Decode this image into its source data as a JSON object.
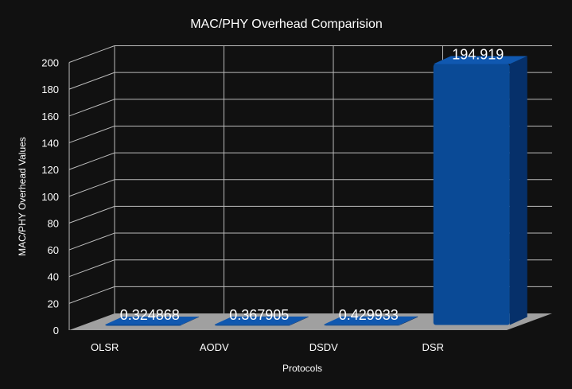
{
  "chart_data": {
    "type": "bar",
    "title": "MAC/PHY Overhead Comparision",
    "xlabel": "Protocols",
    "ylabel": "MAC/PHY Overhead Values",
    "categories": [
      "OLSR",
      "AODV",
      "DSDV",
      "DSR"
    ],
    "values": [
      0.324868,
      0.367905,
      0.429933,
      194.919
    ],
    "data_labels": [
      "0.324868",
      "0.367905",
      "0.429933",
      "194.919"
    ],
    "ylim": [
      0,
      200
    ],
    "yticks": [
      "0",
      "20",
      "40",
      "60",
      "80",
      "100",
      "120",
      "140",
      "160",
      "180",
      "200"
    ],
    "grid": true,
    "style": "3d",
    "colors": {
      "background": "#111111",
      "bar_front": "#0a4a96",
      "bar_side": "#06306a",
      "bar_top": "#1058b0",
      "floor": "#a0a0a0",
      "grid": "#bbbbbb",
      "text": "#ffffff"
    }
  }
}
